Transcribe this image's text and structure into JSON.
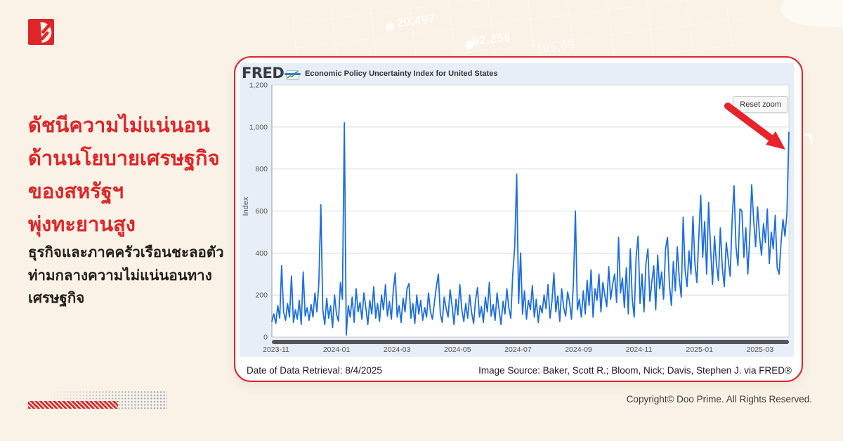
{
  "page": {
    "background": "#faf2e6",
    "accent": "#e02528"
  },
  "brand": {
    "logo_name": "doo-prime-logo"
  },
  "headline": {
    "color": "#e02528",
    "lines": [
      "ดัชนีความไม่แน่นอน",
      "ด้านนโยบายเศรษฐกิจ",
      "ของสหรัฐฯ",
      "พุ่งทะยานสูง"
    ]
  },
  "subheadline": {
    "color": "#211e1b",
    "lines": [
      "ธุรกิจและภาคครัวเรือนชะลอตัว",
      "ท่ามกลางความไม่แน่นอนทาง",
      "เศรษฐกิจ"
    ]
  },
  "card": {
    "border_color": "#e02528",
    "retrieval_text": "Date of Data Retrieval: 8/4/2025",
    "source_text": "Image Source: Baker, Scott R.; Bloom, Nick; Davis, Stephen J. via FRED®"
  },
  "fred_widget": {
    "wordmark": "FRED",
    "background": "#e7eef7",
    "legend_label": "Economic Policy Uncertainty Index for United States",
    "legend_color": "#2f7ed8",
    "reset_zoom_label": "Reset zoom"
  },
  "watermark": {
    "numbers": [
      "20,497",
      "62,259",
      "105,09"
    ]
  },
  "footer": {
    "copyright": "Copyright© Doo Prime. All Rights Reserved."
  },
  "chart_data": {
    "type": "line",
    "title": "Economic Policy Uncertainty Index for United States",
    "ylabel": "Index",
    "ylim": [
      0,
      1200
    ],
    "grid": true,
    "legend_position": "top-left",
    "line_color": "#1d6ee0",
    "x_range": [
      "2023-10-28",
      "2025-04-08"
    ],
    "x_tick_labels": [
      "2023-11",
      "2024-01",
      "2024-03",
      "2024-05",
      "2024-07",
      "2024-09",
      "2024-11",
      "2025-01",
      "2025-03"
    ],
    "y_ticks": [
      {
        "v": 0,
        "label": "0"
      },
      {
        "v": 200,
        "label": "200"
      },
      {
        "v": 400,
        "label": "400"
      },
      {
        "v": 600,
        "label": "600"
      },
      {
        "v": 800,
        "label": "800"
      },
      {
        "v": 1000,
        "label": "1,000"
      },
      {
        "v": 1200,
        "label": "1,200"
      }
    ],
    "key_points": [
      {
        "date": "2023-12-17",
        "value": 630
      },
      {
        "date": "2024-01-09",
        "value": 1020
      },
      {
        "date": "2024-07-03",
        "value": 775
      },
      {
        "date": "2024-09-01",
        "value": 600
      },
      {
        "date": "2024-11-05",
        "value": 480
      },
      {
        "date": "2025-01-08",
        "value": 675
      },
      {
        "date": "2025-03-01",
        "value": 725
      },
      {
        "date": "2025-04-08",
        "value": 975
      }
    ],
    "annotation": "Red arrow points at final spike (~975) at right edge of chart",
    "values": [
      75,
      110,
      65,
      150,
      90,
      340,
      120,
      80,
      160,
      95,
      290,
      70,
      130,
      85,
      175,
      60,
      310,
      100,
      140,
      80,
      155,
      95,
      210,
      120,
      260,
      630,
      130,
      60,
      185,
      90,
      150,
      45,
      200,
      110,
      75,
      260,
      180,
      1020,
      10,
      150,
      95,
      190,
      70,
      230,
      120,
      165,
      85,
      210,
      140,
      60,
      175,
      110,
      240,
      90,
      160,
      75,
      200,
      130,
      250,
      100,
      170,
      85,
      220,
      305,
      95,
      150,
      70,
      185,
      120,
      230,
      255,
      90,
      160,
      65,
      200,
      110,
      175,
      80,
      140,
      95,
      210,
      120,
      85,
      165,
      240,
      300,
      110,
      70,
      190,
      135,
      95,
      225,
      150,
      60,
      180,
      105,
      250,
      130,
      75,
      160,
      90,
      200,
      115,
      65,
      175,
      235,
      95,
      145,
      70,
      190,
      120,
      260,
      100,
      155,
      80,
      210,
      130,
      60,
      170,
      110,
      230,
      140,
      90,
      300,
      430,
      775,
      160,
      400,
      110,
      220,
      85,
      175,
      130,
      245,
      95,
      180,
      70,
      150,
      115,
      200,
      135,
      250,
      90,
      170,
      305,
      120,
      195,
      75,
      230,
      140,
      100,
      215,
      165,
      85,
      260,
      600,
      130,
      180,
      95,
      220,
      110,
      270,
      150,
      320,
      95,
      230,
      175,
      300,
      120,
      260,
      200,
      145,
      335,
      180,
      250,
      300,
      165,
      475,
      210,
      280,
      140,
      330,
      110,
      420,
      180,
      95,
      380,
      480,
      160,
      300,
      120,
      350,
      420,
      170,
      260,
      340,
      130,
      390,
      230,
      310,
      180,
      420,
      475,
      250,
      150,
      360,
      220,
      430,
      280,
      190,
      570,
      320,
      240,
      410,
      300,
      575,
      350,
      260,
      480,
      675,
      380,
      550,
      300,
      640,
      420,
      250,
      480,
      350,
      270,
      520,
      330,
      240,
      450,
      370,
      290,
      560,
      720,
      430,
      340,
      610,
      600,
      380,
      520,
      300,
      470,
      725,
      560,
      430,
      620,
      480,
      390,
      540,
      450,
      610,
      350,
      500,
      420,
      580,
      330,
      300,
      450,
      560,
      480,
      590,
      975
    ]
  }
}
